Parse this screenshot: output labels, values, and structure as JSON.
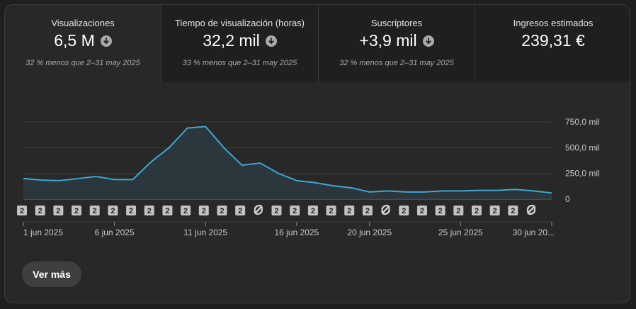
{
  "metrics": [
    {
      "title": "Visualizaciones",
      "value": "6,5 M",
      "trend_icon": "arrow-down-circle-icon",
      "comparison": "32 % menos que 2–31 may 2025"
    },
    {
      "title": "Tiempo de visualización (horas)",
      "value": "32,2 mil",
      "trend_icon": "arrow-down-circle-icon",
      "comparison": "33 % menos que 2–31 may 2025"
    },
    {
      "title": "Suscriptores",
      "value": "+3,9 mil",
      "trend_icon": "arrow-down-circle-icon",
      "comparison": "32 % menos que 2–31 may 2025"
    },
    {
      "title": "Ingresos estimados",
      "value": "239,31 €",
      "trend_icon": null,
      "comparison": ""
    }
  ],
  "colors": {
    "line": "#3ea6cf",
    "area": "#2b3a40",
    "background": "#282828",
    "tab_inactive": "#1f1f1f"
  },
  "chart_data": {
    "type": "area",
    "x": [
      "1 jun",
      "2 jun",
      "3 jun",
      "4 jun",
      "5 jun",
      "6 jun",
      "7 jun",
      "8 jun",
      "9 jun",
      "10 jun",
      "11 jun",
      "12 jun",
      "13 jun",
      "14 jun",
      "15 jun",
      "16 jun",
      "17 jun",
      "18 jun",
      "19 jun",
      "20 jun",
      "21 jun",
      "22 jun",
      "23 jun",
      "24 jun",
      "25 jun",
      "26 jun",
      "27 jun",
      "28 jun",
      "29 jun",
      "30 jun"
    ],
    "series": [
      {
        "values": [
          200000,
          185000,
          180000,
          200000,
          220000,
          190000,
          190000,
          360000,
          500000,
          690000,
          705000,
          500000,
          330000,
          350000,
          250000,
          180000,
          160000,
          130000,
          110000,
          70000,
          80000,
          70000,
          70000,
          80000,
          80000,
          85000,
          85000,
          95000,
          80000,
          60000
        ]
      }
    ],
    "y_ticks": [
      "750,0 mil",
      "500,0 mil",
      "250,0 mil",
      "0"
    ],
    "y_tick_values": [
      750000,
      500000,
      250000,
      0
    ],
    "ylim": [
      0,
      750000
    ],
    "x_tick_labels": [
      {
        "label": "1 jun 2025",
        "index": 0
      },
      {
        "label": "6 jun 2025",
        "index": 5
      },
      {
        "label": "11 jun 2025",
        "index": 10
      },
      {
        "label": "16 jun 2025",
        "index": 15
      },
      {
        "label": "20 jun 2025",
        "index": 19
      },
      {
        "label": "25 jun 2025",
        "index": 24
      },
      {
        "label": "30 jun 20...",
        "index": 29
      }
    ],
    "grid": true,
    "markers": [
      "2",
      "2",
      "2",
      "2",
      "2",
      "2",
      "2",
      "2",
      "2",
      "2",
      "2",
      "2",
      "2",
      "shorts",
      "2",
      "2",
      "2",
      "2",
      "2",
      "2",
      "shorts",
      "2",
      "2",
      "2",
      "2",
      "2",
      "2",
      "2",
      "shorts"
    ]
  },
  "more_button": "Ver más"
}
